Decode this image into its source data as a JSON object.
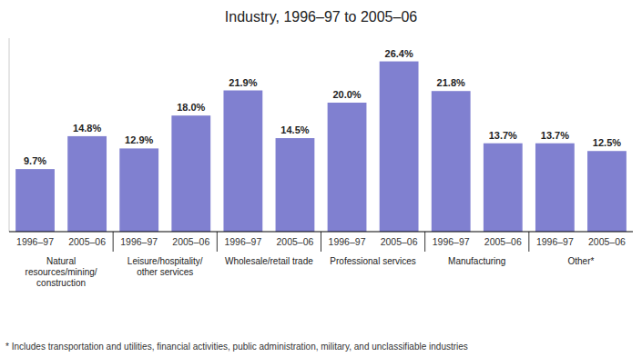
{
  "chart_data": {
    "type": "bar",
    "title": "Industry, 1996–97 to 2005–06",
    "categories": [
      "1996–97",
      "2005–06",
      "1996–97",
      "2005–06",
      "1996–97",
      "2005–06",
      "1996–97",
      "2005–06",
      "1996–97",
      "2005–06",
      "1996–97",
      "2005–06"
    ],
    "values": [
      9.7,
      14.8,
      12.9,
      18.0,
      21.9,
      14.5,
      20.0,
      26.4,
      21.8,
      13.7,
      13.7,
      12.5
    ],
    "value_labels": [
      "9.7%",
      "14.8%",
      "12.9%",
      "18.0%",
      "21.9%",
      "14.5%",
      "20.0%",
      "26.4%",
      "21.8%",
      "13.7%",
      "13.7%",
      "12.5%"
    ],
    "group_labels": [
      "Natural\nresources/mining/\nconstruction",
      "Leisure/hospitality/\nother services",
      "Wholesale/retail trade",
      "Professional services",
      "Manufacturing",
      "Other*"
    ],
    "annotations": [
      "* Includes transportation and utilities, financial activities, public administration, military, and unclassifiable industries"
    ],
    "color": "#8080D0",
    "ylim": [
      0,
      30
    ],
    "data_labels": true,
    "tick_labels": "x"
  }
}
